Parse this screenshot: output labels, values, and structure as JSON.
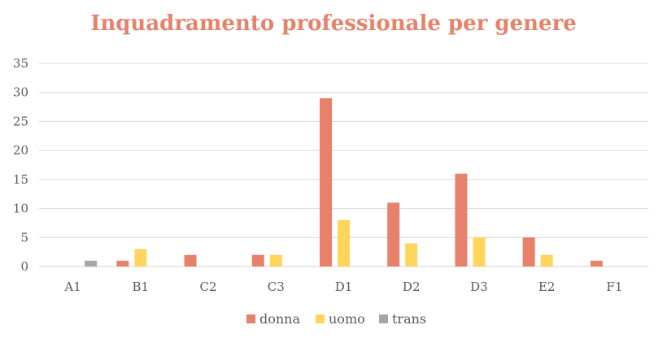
{
  "chart_data": {
    "type": "bar",
    "title": "Inquadramento professionale per genere",
    "xlabel": "",
    "ylabel": "",
    "categories": [
      "A1",
      "B1",
      "C2",
      "C3",
      "D1",
      "D2",
      "D3",
      "E2",
      "F1"
    ],
    "series": [
      {
        "name": "donna",
        "color": "#E8816A",
        "values": [
          0,
          1,
          2,
          2,
          29,
          11,
          16,
          5,
          1
        ]
      },
      {
        "name": "uomo",
        "color": "#FFD55C",
        "values": [
          0,
          3,
          0,
          2,
          8,
          4,
          5,
          2,
          0
        ]
      },
      {
        "name": "trans",
        "color": "#A6A6A6",
        "values": [
          1,
          0,
          0,
          0,
          0,
          0,
          0,
          0,
          0
        ]
      }
    ],
    "ylim": [
      0,
      35
    ],
    "yticks": [
      0,
      5,
      10,
      15,
      20,
      25,
      30,
      35
    ],
    "grid": true,
    "legend_position": "bottom"
  }
}
